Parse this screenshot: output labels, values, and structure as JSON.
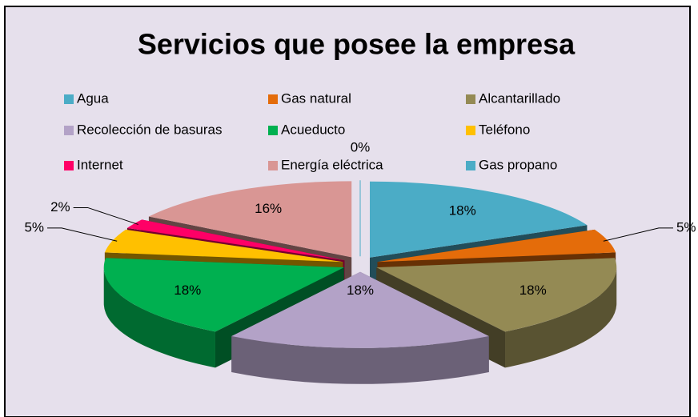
{
  "chart_data": {
    "type": "pie",
    "title": "Servicios que posee la empresa",
    "categories": [
      "Agua",
      "Gas natural",
      "Alcantarillado",
      "Recolección de basuras",
      "Acueducto",
      "Teléfono",
      "Internet",
      "Energía eléctrica",
      "Gas propano"
    ],
    "values": [
      18,
      5,
      18,
      18,
      18,
      5,
      2,
      16,
      0
    ],
    "value_labels": [
      "18%",
      "5%",
      "18%",
      "18%",
      "18%",
      "5%",
      "2%",
      "16%",
      "0%"
    ],
    "colors": [
      "#4bacc6",
      "#e46c0a",
      "#948a54",
      "#b3a2c7",
      "#00b050",
      "#ffc000",
      "#ff0066",
      "#d99694",
      "#4bacc6"
    ],
    "legend": "top"
  }
}
